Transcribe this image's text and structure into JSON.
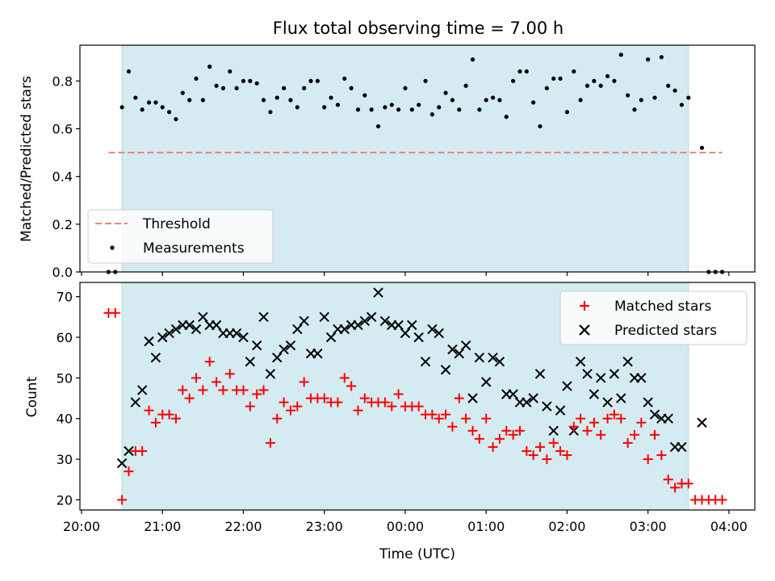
{
  "chart_data": [
    {
      "type": "scatter",
      "title": "Flux total observing time = 7.00 h",
      "ylabel": "Matched/Predicted stars",
      "xlabel": "",
      "ylim": [
        0,
        0.95
      ],
      "xlim_hours": [
        19.98,
        28.32
      ],
      "yticks": [
        0.0,
        0.2,
        0.4,
        0.6,
        0.8
      ],
      "ytick_labels": [
        "0.0",
        "0.2",
        "0.4",
        "0.6",
        "0.8"
      ],
      "observing_window": {
        "start": "20:30",
        "end": "03:30",
        "color": "#d4ebf1"
      },
      "legend": {
        "position": "lower-left",
        "entries": [
          "Threshold",
          "Measurements"
        ]
      },
      "threshold": {
        "name": "Threshold",
        "value": 0.5,
        "x_start": "20:20",
        "x_end": "03:55",
        "color": "#f08080"
      },
      "series": [
        {
          "name": "Measurements",
          "color": "#000000",
          "x": [
            "20:20",
            "20:25",
            "20:30",
            "20:35",
            "20:40",
            "20:45",
            "20:50",
            "20:55",
            "21:00",
            "21:05",
            "21:10",
            "21:15",
            "21:20",
            "21:25",
            "21:30",
            "21:35",
            "21:40",
            "21:45",
            "21:50",
            "21:55",
            "22:00",
            "22:05",
            "22:10",
            "22:15",
            "22:20",
            "22:25",
            "22:30",
            "22:35",
            "22:40",
            "22:45",
            "22:50",
            "22:55",
            "23:00",
            "23:05",
            "23:10",
            "23:15",
            "23:20",
            "23:25",
            "23:30",
            "23:35",
            "23:40",
            "23:45",
            "23:50",
            "23:55",
            "00:00",
            "00:05",
            "00:10",
            "00:15",
            "00:20",
            "00:25",
            "00:30",
            "00:35",
            "00:40",
            "00:45",
            "00:50",
            "00:55",
            "01:00",
            "01:05",
            "01:10",
            "01:15",
            "01:20",
            "01:25",
            "01:30",
            "01:35",
            "01:40",
            "01:45",
            "01:50",
            "01:55",
            "02:00",
            "02:05",
            "02:10",
            "02:15",
            "02:20",
            "02:25",
            "02:30",
            "02:35",
            "02:40",
            "02:45",
            "02:50",
            "02:55",
            "03:00",
            "03:05",
            "03:10",
            "03:15",
            "03:20",
            "03:25",
            "03:30",
            "03:40",
            "03:45",
            "03:50",
            "03:55"
          ],
          "y": [
            0.0,
            0.0,
            0.69,
            0.84,
            0.73,
            0.68,
            0.71,
            0.71,
            0.69,
            0.67,
            0.64,
            0.75,
            0.72,
            0.81,
            0.72,
            0.86,
            0.78,
            0.77,
            0.84,
            0.77,
            0.8,
            0.8,
            0.79,
            0.72,
            0.67,
            0.73,
            0.77,
            0.72,
            0.69,
            0.77,
            0.8,
            0.8,
            0.69,
            0.73,
            0.7,
            0.81,
            0.77,
            0.68,
            0.74,
            0.68,
            0.61,
            0.69,
            0.7,
            0.68,
            0.77,
            0.68,
            0.7,
            0.8,
            0.66,
            0.69,
            0.75,
            0.72,
            0.68,
            0.78,
            0.89,
            0.68,
            0.72,
            0.73,
            0.72,
            0.65,
            0.8,
            0.84,
            0.84,
            0.71,
            0.61,
            0.77,
            0.81,
            0.81,
            0.67,
            0.84,
            0.72,
            0.78,
            0.8,
            0.78,
            0.82,
            0.8,
            0.91,
            0.74,
            0.68,
            0.72,
            0.89,
            0.73,
            0.9,
            0.78,
            0.76,
            0.7,
            0.73,
            0.52,
            0.0,
            0.0,
            0.0
          ]
        }
      ]
    },
    {
      "type": "scatter",
      "title": "",
      "ylabel": "Count",
      "xlabel": "Time (UTC)",
      "ylim": [
        17.5,
        73.5
      ],
      "xlim_hours": [
        19.98,
        28.32
      ],
      "yticks": [
        20,
        30,
        40,
        50,
        60,
        70
      ],
      "ytick_labels": [
        "20",
        "30",
        "40",
        "50",
        "60",
        "70"
      ],
      "xtick_labels": [
        "20:00",
        "21:00",
        "22:00",
        "23:00",
        "00:00",
        "01:00",
        "02:00",
        "03:00",
        "04:00"
      ],
      "observing_window": {
        "start": "20:30",
        "end": "03:30",
        "color": "#d4ebf1"
      },
      "legend": {
        "position": "top-right",
        "entries": [
          "Matched stars",
          "Predicted stars"
        ]
      },
      "series": [
        {
          "name": "Matched stars",
          "marker": "plus",
          "color": "#ff0000",
          "x": [
            "20:20",
            "20:25",
            "20:30",
            "20:35",
            "20:40",
            "20:45",
            "20:50",
            "20:55",
            "21:00",
            "21:05",
            "21:10",
            "21:15",
            "21:20",
            "21:25",
            "21:30",
            "21:35",
            "21:40",
            "21:45",
            "21:50",
            "21:55",
            "22:00",
            "22:05",
            "22:10",
            "22:15",
            "22:20",
            "22:25",
            "22:30",
            "22:35",
            "22:40",
            "22:45",
            "22:50",
            "22:55",
            "23:00",
            "23:05",
            "23:10",
            "23:15",
            "23:20",
            "23:25",
            "23:30",
            "23:35",
            "23:40",
            "23:45",
            "23:50",
            "23:55",
            "00:00",
            "00:05",
            "00:10",
            "00:15",
            "00:20",
            "00:25",
            "00:30",
            "00:35",
            "00:40",
            "00:45",
            "00:50",
            "00:55",
            "01:00",
            "01:05",
            "01:10",
            "01:15",
            "01:20",
            "01:25",
            "01:30",
            "01:35",
            "01:40",
            "01:45",
            "01:50",
            "01:55",
            "02:00",
            "02:05",
            "02:10",
            "02:15",
            "02:20",
            "02:25",
            "02:30",
            "02:35",
            "02:40",
            "02:45",
            "02:50",
            "02:55",
            "03:00",
            "03:05",
            "03:10",
            "03:15",
            "03:20",
            "03:25",
            "03:30",
            "03:35",
            "03:40",
            "03:45",
            "03:50",
            "03:55"
          ],
          "y": [
            66,
            66,
            20,
            27,
            32,
            32,
            42,
            39,
            41,
            41,
            40,
            47,
            45,
            50,
            47,
            54,
            49,
            47,
            51,
            47,
            47,
            43,
            46,
            47,
            34,
            40,
            44,
            42,
            43,
            49,
            45,
            45,
            45,
            44,
            44,
            50,
            48,
            42,
            45,
            44,
            44,
            44,
            43,
            46,
            43,
            43,
            43,
            41,
            41,
            40,
            41,
            38,
            45,
            40,
            37,
            35,
            40,
            33,
            35,
            37,
            36,
            37,
            32,
            31,
            33,
            30,
            34,
            32,
            31,
            38,
            40,
            37,
            39,
            36,
            40,
            41,
            40,
            34,
            36,
            39,
            30,
            36,
            31,
            25,
            23,
            24,
            24,
            20,
            20,
            20,
            20,
            20
          ]
        },
        {
          "name": "Predicted stars",
          "marker": "x",
          "color": "#000000",
          "x": [
            "20:30",
            "20:35",
            "20:40",
            "20:45",
            "20:50",
            "20:55",
            "21:00",
            "21:05",
            "21:10",
            "21:15",
            "21:20",
            "21:25",
            "21:30",
            "21:35",
            "21:40",
            "21:45",
            "21:50",
            "21:55",
            "22:00",
            "22:05",
            "22:10",
            "22:15",
            "22:20",
            "22:25",
            "22:30",
            "22:35",
            "22:40",
            "22:45",
            "22:50",
            "22:55",
            "23:00",
            "23:05",
            "23:10",
            "23:15",
            "23:20",
            "23:25",
            "23:30",
            "23:35",
            "23:40",
            "23:45",
            "23:50",
            "23:55",
            "00:00",
            "00:05",
            "00:10",
            "00:15",
            "00:20",
            "00:25",
            "00:30",
            "00:35",
            "00:40",
            "00:45",
            "00:50",
            "00:55",
            "01:00",
            "01:05",
            "01:10",
            "01:15",
            "01:20",
            "01:25",
            "01:30",
            "01:35",
            "01:40",
            "01:45",
            "01:50",
            "01:55",
            "02:00",
            "02:05",
            "02:10",
            "02:15",
            "02:20",
            "02:25",
            "02:30",
            "02:35",
            "02:40",
            "02:45",
            "02:50",
            "02:55",
            "03:00",
            "03:05",
            "03:10",
            "03:15",
            "03:20",
            "03:25",
            "03:40"
          ],
          "y": [
            29,
            32,
            44,
            47,
            59,
            55,
            60,
            61,
            62,
            63,
            63,
            62,
            65,
            63,
            63,
            61,
            61,
            61,
            60,
            54,
            58,
            65,
            51,
            55,
            57,
            58,
            62,
            64,
            56,
            56,
            65,
            60,
            62,
            62,
            63,
            63,
            64,
            65,
            71,
            64,
            63,
            63,
            61,
            63,
            60,
            54,
            62,
            61,
            52,
            57,
            56,
            58,
            45,
            55,
            49,
            55,
            54,
            46,
            46,
            44,
            44,
            45,
            51,
            43,
            37,
            42,
            48,
            37,
            54,
            51,
            46,
            50,
            44,
            51,
            45,
            54,
            50,
            50,
            44,
            41,
            40,
            40,
            33,
            33,
            39
          ]
        }
      ]
    }
  ]
}
